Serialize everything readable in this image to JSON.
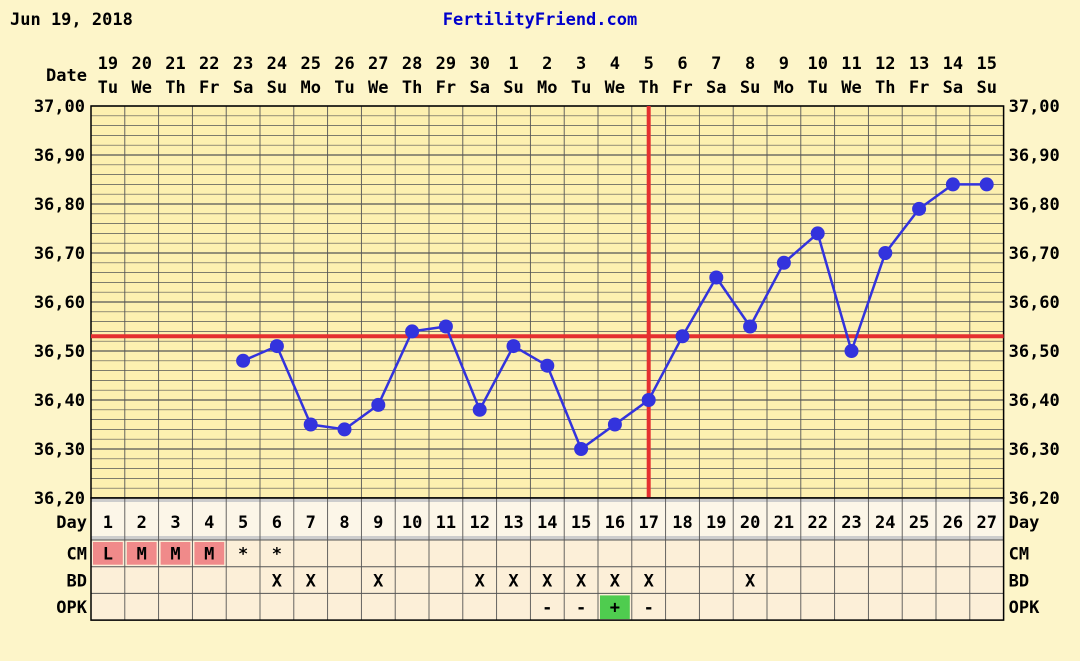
{
  "header": {
    "date": "Jun 19, 2018",
    "site": "FertilityFriend.com"
  },
  "chart_data": {
    "type": "line",
    "title": "",
    "row_labels": {
      "date": "Date",
      "day": "Day",
      "cm": "CM",
      "bd": "BD",
      "opk": "OPK"
    },
    "ylim": [
      36.2,
      37.0
    ],
    "y_ticks": [
      "36,20",
      "36,30",
      "36,40",
      "36,50",
      "36,60",
      "36,70",
      "36,80",
      "36,90",
      "37,00"
    ],
    "dates": [
      "19",
      "20",
      "21",
      "22",
      "23",
      "24",
      "25",
      "26",
      "27",
      "28",
      "29",
      "30",
      "1",
      "2",
      "3",
      "4",
      "5",
      "6",
      "7",
      "8",
      "9",
      "10",
      "11",
      "12",
      "13",
      "14",
      "15"
    ],
    "weekdays": [
      "Tu",
      "We",
      "Th",
      "Fr",
      "Sa",
      "Su",
      "Mo",
      "Tu",
      "We",
      "Th",
      "Fr",
      "Sa",
      "Su",
      "Mo",
      "Tu",
      "We",
      "Th",
      "Fr",
      "Sa",
      "Su",
      "Mo",
      "Tu",
      "We",
      "Th",
      "Fr",
      "Sa",
      "Su"
    ],
    "cycle_days": [
      "1",
      "2",
      "3",
      "4",
      "5",
      "6",
      "7",
      "8",
      "9",
      "10",
      "11",
      "12",
      "13",
      "14",
      "15",
      "16",
      "17",
      "18",
      "19",
      "20",
      "21",
      "22",
      "23",
      "24",
      "25",
      "26",
      "27"
    ],
    "temperatures": [
      null,
      null,
      null,
      null,
      36.48,
      36.51,
      36.35,
      36.34,
      36.39,
      36.54,
      36.55,
      36.38,
      36.51,
      36.47,
      36.3,
      36.35,
      36.4,
      36.53,
      36.65,
      36.55,
      36.68,
      36.74,
      36.5,
      36.7,
      36.79,
      36.84,
      36.84
    ],
    "coverline": 36.53,
    "ovulation_day": 17,
    "cm": [
      "L",
      "M",
      "M",
      "M",
      "*",
      "*",
      "",
      "",
      "",
      "",
      "",
      "",
      "",
      "",
      "",
      "",
      "",
      "",
      "",
      "",
      "",
      "",
      "",
      "",
      "",
      "",
      ""
    ],
    "bd": [
      "",
      "",
      "",
      "",
      "",
      "X",
      "X",
      "",
      "X",
      "",
      "",
      "X",
      "X",
      "X",
      "X",
      "X",
      "X",
      "",
      "",
      "X",
      "",
      "",
      "",
      "",
      "",
      "",
      ""
    ],
    "opk": [
      "",
      "",
      "",
      "",
      "",
      "",
      "",
      "",
      "",
      "",
      "",
      "",
      "",
      "-",
      "-",
      "+",
      "-",
      "",
      "",
      "",
      "",
      "",
      "",
      "",
      "",
      "",
      ""
    ],
    "colors": {
      "line": "#3333dd",
      "coverline": "#e53030",
      "plot_bg": "#fdf0b0",
      "grid": "#555555",
      "day_row_bg": "#cdcdcd",
      "obs_row_bg": "#fcefd8",
      "menses": "#f08a8a",
      "opk_positive": "#4fcc4f"
    }
  }
}
